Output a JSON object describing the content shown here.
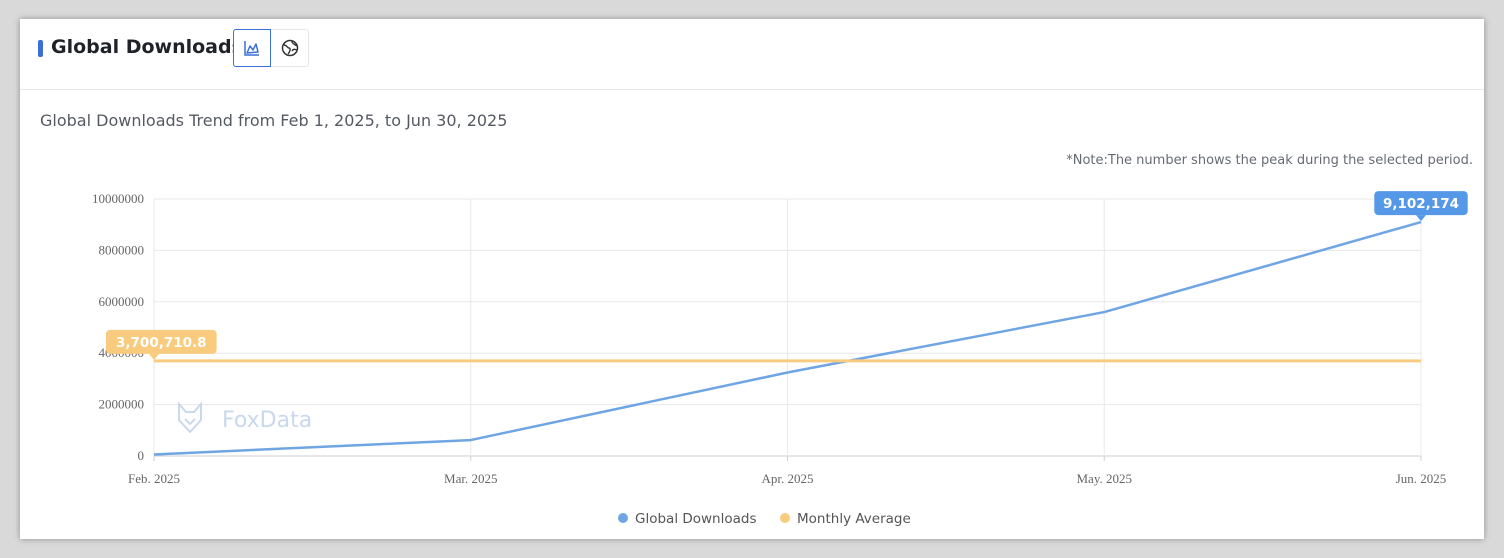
{
  "header": {
    "title": "Global Downloads",
    "buttons": [
      {
        "icon": "area-chart-icon",
        "active": true
      },
      {
        "icon": "globe-icon",
        "active": false
      }
    ]
  },
  "subtitle": "Global Downloads Trend from Feb 1, 2025, to Jun 30, 2025",
  "note": "*Note:The number shows the peak during the selected period.",
  "watermark": "FoxData",
  "colors": {
    "accent": "#3a6fd8",
    "downloads": "#6fa5e3",
    "average": "#f9cb7f",
    "downloads_tag": "#5598e8",
    "average_tag": "#f9cb7f",
    "grid": "#e8e8e8"
  },
  "chart_data": {
    "type": "line",
    "categories": [
      "Feb. 2025",
      "Mar. 2025",
      "Apr. 2025",
      "May. 2025",
      "Jun. 2025"
    ],
    "ylim": [
      0,
      10000000
    ],
    "yticks": [
      0,
      2000000,
      4000000,
      6000000,
      8000000,
      10000000
    ],
    "ytick_labels": [
      "0",
      "2000000",
      "4000000",
      "6000000",
      "8000000",
      "10000000"
    ],
    "grid": true,
    "legend_position": "bottom-center",
    "series": [
      {
        "name": "Global Downloads",
        "values": [
          60000,
          620000,
          3250000,
          5600000,
          9102174
        ],
        "peak_label": "9,102,174",
        "peak_index": 4
      },
      {
        "name": "Monthly Average",
        "values": [
          3700710.8,
          3700710.8,
          3700710.8,
          3700710.8,
          3700710.8
        ],
        "peak_label": "3,700,710.8",
        "peak_index": 0
      }
    ]
  }
}
